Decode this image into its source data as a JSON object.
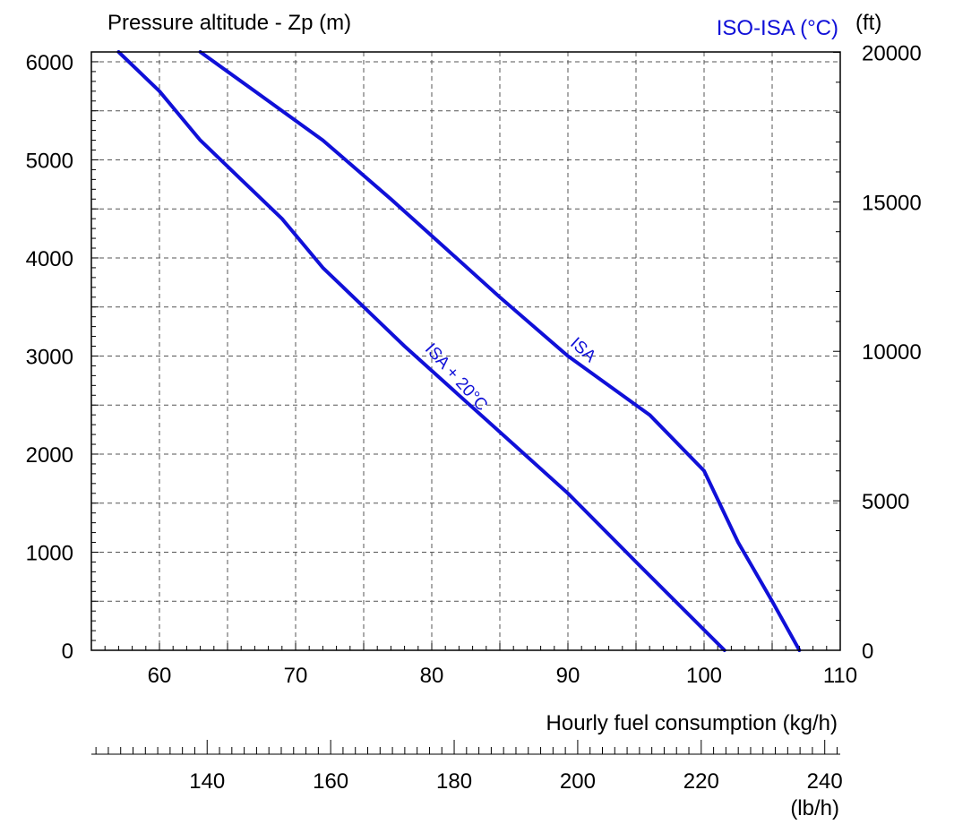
{
  "chart_data": {
    "type": "line",
    "title": "",
    "y_label_left": "Pressure altitude - Zp (m)",
    "y_label_right": "(ft)",
    "legend_title": "ISO-ISA (°C)",
    "x_label": "Hourly fuel consumption (kg/h)",
    "x2_unit": "(lb/h)",
    "xlim": [
      55,
      110
    ],
    "ylim": [
      0,
      6100
    ],
    "x_ticks": [
      60,
      70,
      80,
      90,
      100,
      110
    ],
    "y_ticks": [
      0,
      1000,
      2000,
      3000,
      4000,
      5000,
      6000
    ],
    "y2_ticks_ft": [
      0,
      5000,
      10000,
      15000,
      20000
    ],
    "x2_ticks_lb": [
      140,
      160,
      180,
      200,
      220,
      240
    ],
    "grid": true,
    "series": [
      {
        "name": "ISA",
        "color": "#1010d8",
        "points": [
          [
            63,
            6100
          ],
          [
            67,
            5700
          ],
          [
            72,
            5200
          ],
          [
            77,
            4600
          ],
          [
            81,
            4100
          ],
          [
            85,
            3600
          ],
          [
            90,
            3000
          ],
          [
            96,
            2400
          ],
          [
            100,
            1830
          ],
          [
            102.5,
            1100
          ],
          [
            105,
            500
          ],
          [
            107,
            0
          ]
        ]
      },
      {
        "name": "ISA + 20°C",
        "color": "#1010d8",
        "points": [
          [
            57,
            6100
          ],
          [
            60,
            5700
          ],
          [
            63,
            5200
          ],
          [
            66,
            4800
          ],
          [
            69,
            4400
          ],
          [
            72,
            3900
          ],
          [
            75,
            3500
          ],
          [
            78,
            3100
          ],
          [
            82,
            2600
          ],
          [
            86,
            2100
          ],
          [
            90,
            1600
          ],
          [
            95,
            900
          ],
          [
            101.5,
            0
          ]
        ]
      }
    ]
  }
}
